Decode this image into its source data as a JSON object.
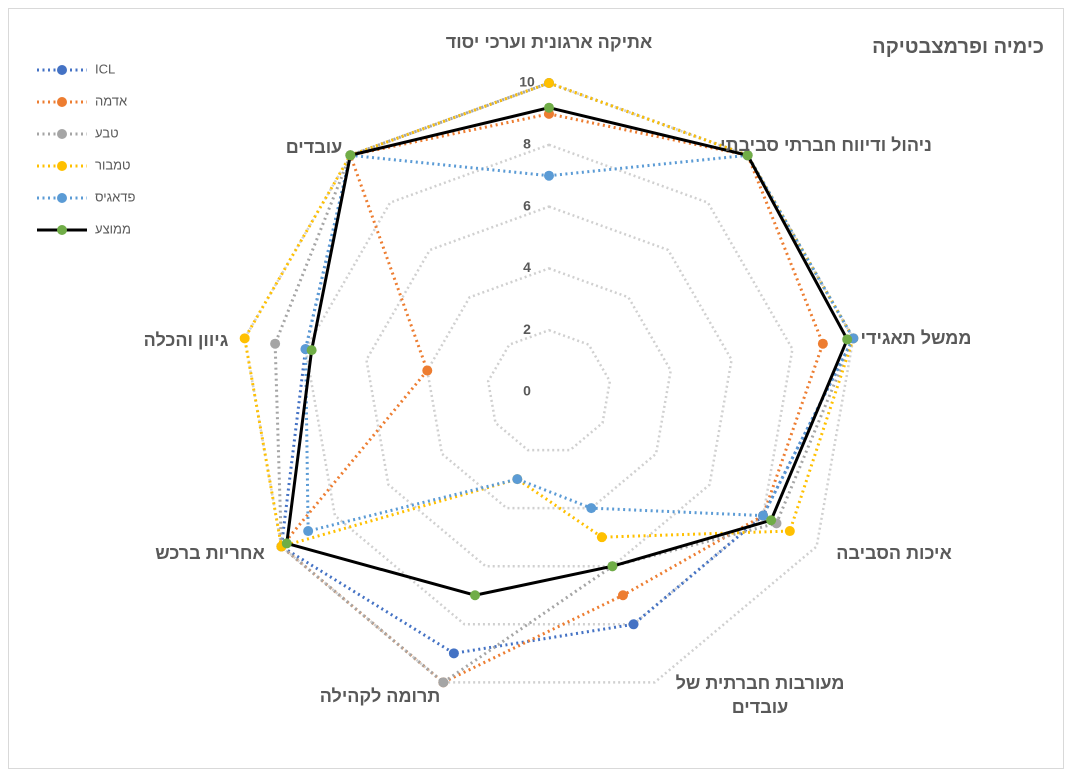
{
  "chart_data": {
    "type": "radar",
    "title": "כימיה ופרמצבטיקה",
    "categories": [
      "אתיקה ארגונית וערכי יסוד",
      "ניהול ודיווח חברתי סביבתי",
      "ממשל תאגידי",
      "איכות הסביבה",
      "מעורבות חברתית של עובדים",
      "תרומה לקהילה",
      "אחריות ברכש",
      "גיוון והכלה",
      "עובדים"
    ],
    "ylim": [
      0,
      10
    ],
    "yticks": [
      0,
      2,
      4,
      6,
      8,
      10
    ],
    "grid": true,
    "series": [
      {
        "name": "ICL",
        "color": "#4472c4",
        "line_style": "dotted",
        "values": [
          10,
          10,
          10,
          8,
          8,
          9,
          10,
          8,
          10
        ]
      },
      {
        "name": "אדמה",
        "color": "#ed7d31",
        "line_style": "dotted",
        "values": [
          9,
          10,
          9,
          8,
          7,
          10,
          10,
          4,
          10
        ]
      },
      {
        "name": "טבע",
        "color": "#a5a5a5",
        "line_style": "dotted",
        "values": [
          10,
          10,
          10,
          8.5,
          6,
          10,
          10,
          9,
          10
        ]
      },
      {
        "name": "טמבור",
        "color": "#ffc000",
        "line_style": "dotted",
        "values": [
          10,
          10,
          10,
          9,
          5,
          3,
          10,
          10,
          10
        ]
      },
      {
        "name": "פדאגיס",
        "color": "#5b9bd5",
        "line_style": "dotted",
        "values": [
          7,
          10,
          10,
          8,
          4,
          3,
          9,
          8,
          10
        ]
      },
      {
        "name": "ממוצע",
        "color": "#000000",
        "marker_color": "#70ad47",
        "line_style": "solid",
        "values": [
          9.2,
          10,
          9.8,
          8.3,
          6,
          7,
          9.8,
          7.8,
          10
        ]
      }
    ]
  }
}
